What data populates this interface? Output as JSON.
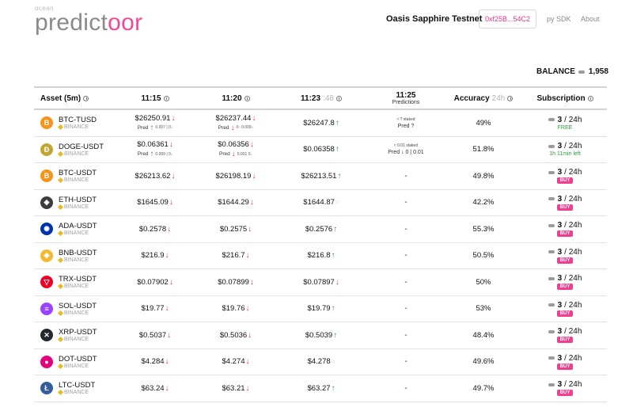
{
  "header": {
    "logo_small": "ocean",
    "logo_main": "predict",
    "logo_accent": "oor",
    "network": "Oasis Sapphire Testnet",
    "wallet": "0xf25B...54C2",
    "nav": [
      "py SDK",
      "About"
    ]
  },
  "balance": {
    "label": "BALANCE",
    "value": "1,958"
  },
  "table": {
    "headers": {
      "asset": "Asset (5m)",
      "t1": "11:15",
      "t2": "11:20",
      "t3_main": "11:23",
      "t3_grey": ":48",
      "t4": "11:25",
      "t4_sub": "Predictions",
      "accuracy": "Accuracy",
      "accuracy_grey": "24h",
      "subscription": "Subscription"
    },
    "rows": [
      {
        "pair": "BTC-TUSD",
        "exchange": "BINANCE",
        "coin": "B",
        "color": "#f7931a",
        "p1": "$26250.91",
        "d1": "down",
        "pred1": "Pred",
        "pd1": "up",
        "pred1_small": "0.007 | 0↓",
        "p2": "$26237.44",
        "d2": "down",
        "pred2": "Pred",
        "pd2": "down",
        "pred2_small": "0↑ 0.009↓",
        "p3": "$26247.8",
        "d3": "up",
        "t4_staked": "≈ ? staked",
        "t4_pred": "Pred ?",
        "accuracy": "49%",
        "sub_count": "3",
        "sub_period": "/ 24h",
        "sub_status": "FREE",
        "sub_kind": "free"
      },
      {
        "pair": "DOGE-USDT",
        "exchange": "BINANCE",
        "coin": "Ð",
        "color": "#c2a633",
        "p1": "$0.06361",
        "d1": "down",
        "pred1": "Pred",
        "pd1": "up",
        "pred1_small": "0.009 | 0↓",
        "p2": "$0.06356",
        "d2": "down",
        "pred2": "Pred",
        "pd2": "down",
        "pred2_small": "0.001 0↓",
        "p3": "$0.06358",
        "d3": "up",
        "t4_staked": "≈ 0.01 staked",
        "t4_pred": "Pred ↓ 0 | 0.01",
        "accuracy": "51.8%",
        "sub_count": "3",
        "sub_period": "/ 24h",
        "sub_status": "1h 11min left",
        "sub_kind": "free"
      },
      {
        "pair": "BTC-USDT",
        "exchange": "BINANCE",
        "coin": "B",
        "color": "#f7931a",
        "p1": "$26213.62",
        "d1": "down",
        "p2": "$26198.19",
        "d2": "down",
        "p3": "$26213.51",
        "d3": "up",
        "t4": "-",
        "accuracy": "49.8%",
        "sub_count": "3",
        "sub_period": "/ 24h",
        "sub_status": "BUY",
        "sub_kind": "buy"
      },
      {
        "pair": "ETH-USDT",
        "exchange": "BINANCE",
        "coin": "◆",
        "color": "#3c3c3d",
        "p1": "$1645.09",
        "d1": "down",
        "p2": "$1644.29",
        "d2": "down",
        "p3": "$1644.87",
        "d3": "spin",
        "t4": "-",
        "accuracy": "42.2%",
        "sub_count": "3",
        "sub_period": "/ 24h",
        "sub_status": "BUY",
        "sub_kind": "buy"
      },
      {
        "pair": "ADA-USDT",
        "exchange": "BINANCE",
        "coin": "✺",
        "color": "#0033ad",
        "p1": "$0.2578",
        "d1": "down",
        "p2": "$0.2575",
        "d2": "down",
        "p3": "$0.2576",
        "d3": "up",
        "t4": "-",
        "accuracy": "55.3%",
        "sub_count": "3",
        "sub_period": "/ 24h",
        "sub_status": "BUY",
        "sub_kind": "buy"
      },
      {
        "pair": "BNB-USDT",
        "exchange": "BINANCE",
        "coin": "◆",
        "color": "#f3ba2f",
        "p1": "$216.9",
        "d1": "down",
        "p2": "$216.7",
        "d2": "down",
        "p3": "$216.8",
        "d3": "up",
        "t4": "-",
        "accuracy": "50.5%",
        "sub_count": "3",
        "sub_period": "/ 24h",
        "sub_status": "BUY",
        "sub_kind": "buy"
      },
      {
        "pair": "TRX-USDT",
        "exchange": "BINANCE",
        "coin": "▽",
        "color": "#ef0027",
        "p1": "$0.07902",
        "d1": "down",
        "p2": "$0.07899",
        "d2": "down",
        "p3": "$0.07897",
        "d3": "down",
        "t4": "-",
        "accuracy": "50%",
        "sub_count": "3",
        "sub_period": "/ 24h",
        "sub_status": "BUY",
        "sub_kind": "buy"
      },
      {
        "pair": "SOL-USDT",
        "exchange": "BINANCE",
        "coin": "≡",
        "color": "#9945ff",
        "p1": "$19.77",
        "d1": "down",
        "p2": "$19.76",
        "d2": "down",
        "p3": "$19.79",
        "d3": "up",
        "t4": "-",
        "accuracy": "53%",
        "sub_count": "3",
        "sub_period": "/ 24h",
        "sub_status": "BUY",
        "sub_kind": "buy"
      },
      {
        "pair": "XRP-USDT",
        "exchange": "BINANCE",
        "coin": "✕",
        "color": "#23292f",
        "p1": "$0.5037",
        "d1": "down",
        "p2": "$0.5036",
        "d2": "down",
        "p3": "$0.5039",
        "d3": "up",
        "t4": "-",
        "accuracy": "48.4%",
        "sub_count": "3",
        "sub_period": "/ 24h",
        "sub_status": "BUY",
        "sub_kind": "buy"
      },
      {
        "pair": "DOT-USDT",
        "exchange": "BINANCE",
        "coin": "●",
        "color": "#e6007a",
        "p1": "$4.284",
        "d1": "down",
        "p2": "$4.274",
        "d2": "down",
        "p3": "$4.278",
        "d3": "spin",
        "t4": "-",
        "accuracy": "49.6%",
        "sub_count": "3",
        "sub_period": "/ 24h",
        "sub_status": "BUY",
        "sub_kind": "buy"
      },
      {
        "pair": "LTC-USDT",
        "exchange": "BINANCE",
        "coin": "Ł",
        "color": "#345d9d",
        "p1": "$63.24",
        "d1": "down",
        "p2": "$63.21",
        "d2": "down",
        "p3": "$63.27",
        "d3": "up",
        "t4": "-",
        "accuracy": "49.7%",
        "sub_count": "3",
        "sub_period": "/ 24h",
        "sub_status": "BUY",
        "sub_kind": "buy"
      }
    ]
  }
}
